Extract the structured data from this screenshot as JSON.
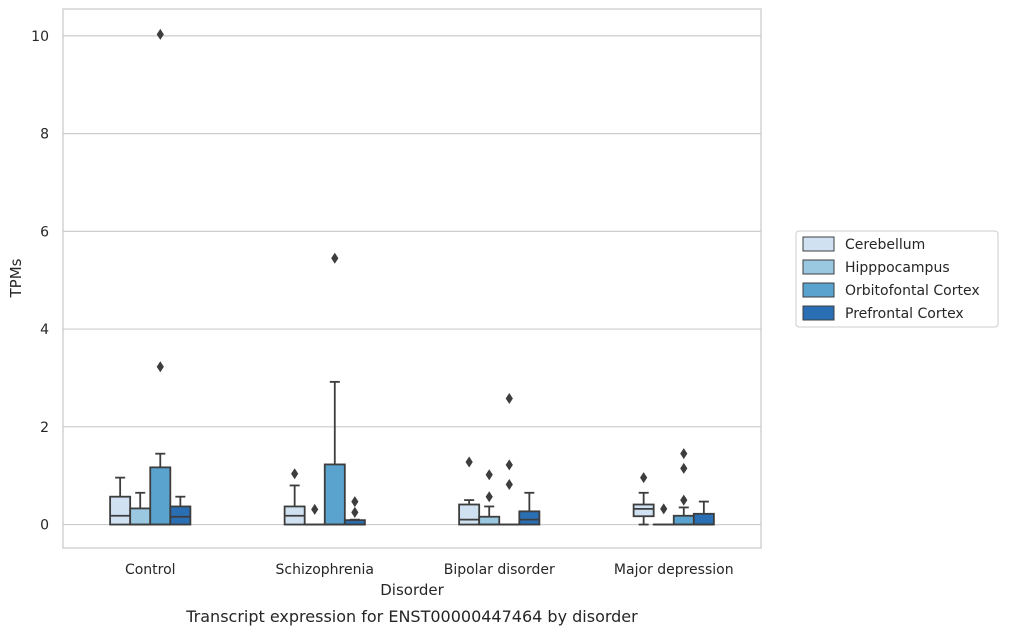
{
  "chart_data": {
    "type": "box",
    "xlabel": "Disorder",
    "ylabel": "TPMs",
    "caption": "Transcript expression for ENST00000447464 by disorder",
    "ylim": [
      -0.48,
      10.55
    ],
    "yticks": [
      "0",
      "2",
      "4",
      "6",
      "8",
      "10"
    ],
    "grid": "horizontal",
    "legend_position": "right",
    "categories": [
      "Control",
      "Schizophrenia",
      "Bipolar disorder",
      "Major depression"
    ],
    "series": [
      {
        "name": "Cerebellum",
        "color": "#d0e1f2",
        "boxes": [
          {
            "q1": 0.0,
            "median": 0.18,
            "q3": 0.57,
            "whislo": 0.0,
            "whishi": 0.96,
            "fliers": []
          },
          {
            "q1": 0.0,
            "median": 0.18,
            "q3": 0.37,
            "whislo": 0.0,
            "whishi": 0.8,
            "fliers": [
              1.04
            ]
          },
          {
            "q1": 0.0,
            "median": 0.1,
            "q3": 0.41,
            "whislo": 0.0,
            "whishi": 0.5,
            "fliers": [
              1.28
            ]
          },
          {
            "q1": 0.17,
            "median": 0.32,
            "q3": 0.41,
            "whislo": 0.0,
            "whishi": 0.65,
            "fliers": [
              0.96
            ]
          }
        ]
      },
      {
        "name": "Hipppocampus",
        "color": "#9ac8e0",
        "boxes": [
          {
            "q1": 0.0,
            "median": 0.0,
            "q3": 0.33,
            "whislo": 0.0,
            "whishi": 0.65,
            "fliers": []
          },
          {
            "q1": 0.0,
            "median": 0.0,
            "q3": 0.0,
            "whislo": 0.0,
            "whishi": 0.0,
            "fliers": [
              0.31
            ]
          },
          {
            "q1": 0.0,
            "median": 0.0,
            "q3": 0.16,
            "whislo": 0.0,
            "whishi": 0.37,
            "fliers": [
              0.57,
              1.02
            ]
          },
          {
            "q1": 0.0,
            "median": 0.0,
            "q3": 0.0,
            "whislo": 0.0,
            "whishi": 0.0,
            "fliers": [
              0.32
            ]
          }
        ]
      },
      {
        "name": "Orbitofontal Cortex",
        "color": "#5ba3cf",
        "boxes": [
          {
            "q1": 0.0,
            "median": 0.0,
            "q3": 1.17,
            "whislo": 0.0,
            "whishi": 1.45,
            "fliers": [
              3.23,
              10.03
            ]
          },
          {
            "q1": 0.0,
            "median": 0.0,
            "q3": 1.23,
            "whislo": 0.0,
            "whishi": 2.92,
            "fliers": [
              5.45
            ]
          },
          {
            "q1": 0.0,
            "median": 0.0,
            "q3": 0.0,
            "whislo": 0.0,
            "whishi": 0.0,
            "fliers": [
              0.82,
              1.22,
              2.58
            ]
          },
          {
            "q1": 0.0,
            "median": 0.0,
            "q3": 0.18,
            "whislo": 0.0,
            "whishi": 0.35,
            "fliers": [
              0.5,
              1.15,
              1.45
            ]
          }
        ]
      },
      {
        "name": "Prefrontal Cortex",
        "color": "#2a6fb4",
        "boxes": [
          {
            "q1": 0.0,
            "median": 0.16,
            "q3": 0.37,
            "whislo": 0.0,
            "whishi": 0.57,
            "fliers": []
          },
          {
            "q1": 0.0,
            "median": 0.0,
            "q3": 0.09,
            "whislo": 0.0,
            "whishi": 0.1,
            "fliers": [
              0.25,
              0.47
            ]
          },
          {
            "q1": 0.0,
            "median": 0.1,
            "q3": 0.27,
            "whislo": 0.0,
            "whishi": 0.65,
            "fliers": []
          },
          {
            "q1": 0.0,
            "median": 0.0,
            "q3": 0.22,
            "whislo": 0.0,
            "whishi": 0.47,
            "fliers": []
          }
        ]
      }
    ]
  }
}
